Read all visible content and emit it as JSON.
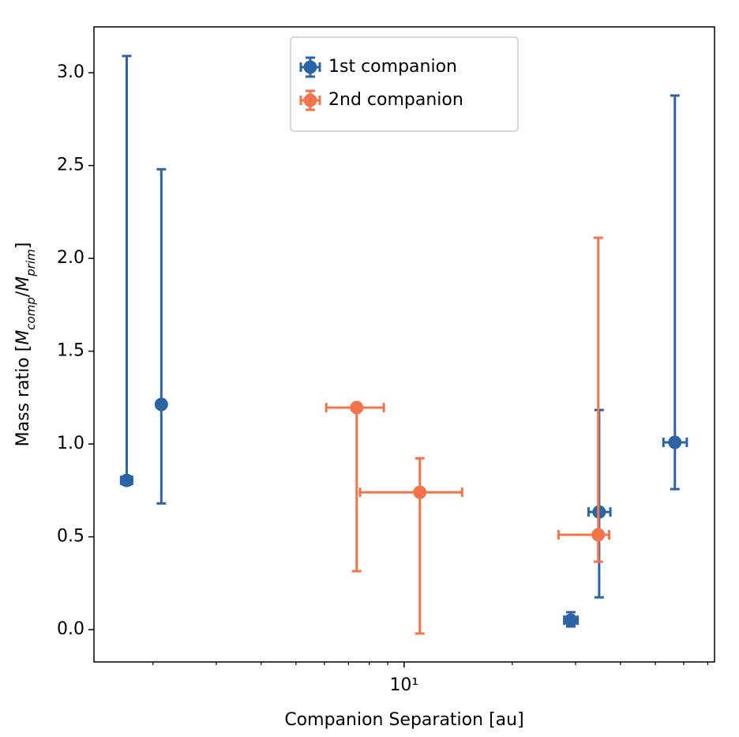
{
  "chart_data": {
    "type": "errorbar",
    "xlabel": "Companion Separation [au]",
    "ylabel": [
      "Mass ratio [",
      "M",
      "comp",
      "/",
      "M",
      "prim",
      "]"
    ],
    "xscale": "log",
    "xlim": [
      1.37,
      73.1
    ],
    "ylim": [
      -0.174,
      3.247
    ],
    "xticks": [
      {
        "value": 10,
        "label": "10¹"
      }
    ],
    "xminor_ticks": [
      2,
      3,
      4,
      5,
      6,
      7,
      8,
      9,
      20,
      30,
      40,
      50,
      60,
      70
    ],
    "yticks": [
      {
        "value": 0,
        "label": "0.0"
      },
      {
        "value": 0.5,
        "label": "0.5"
      },
      {
        "value": 1,
        "label": "1.0"
      },
      {
        "value": 1.5,
        "label": "1.5"
      },
      {
        "value": 2,
        "label": "2.0"
      },
      {
        "value": 2.5,
        "label": "2.5"
      },
      {
        "value": 3,
        "label": "3.0"
      }
    ],
    "legend": "upper center",
    "series": [
      {
        "name": "1st companion",
        "color": "#2a64a6",
        "x": [
          1.69,
          2.11,
          29.1,
          34.9,
          56.7
        ],
        "values": [
          0.804,
          1.213,
          0.051,
          0.634,
          1.009
        ],
        "ylow": [
          0.78,
          0.68,
          0.017,
          0.174,
          0.757
        ],
        "yhigh": [
          3.09,
          2.48,
          0.094,
          1.183,
          2.877
        ],
        "xlow": [
          1.63,
          2.11,
          27.9,
          32.6,
          52.7
        ],
        "xhigh": [
          1.75,
          2.11,
          30.4,
          37.5,
          61.2
        ]
      },
      {
        "name": "2nd companion",
        "color": "#f4734a",
        "x": [
          7.38,
          11.06,
          34.7
        ],
        "values": [
          1.196,
          0.74,
          0.511
        ],
        "ylow": [
          0.315,
          -0.021,
          0.366
        ],
        "yhigh": [
          1.196,
          0.923,
          2.111
        ],
        "xlow": [
          6.07,
          7.54,
          26.9
        ],
        "xhigh": [
          8.78,
          14.5,
          37.2
        ]
      }
    ]
  }
}
